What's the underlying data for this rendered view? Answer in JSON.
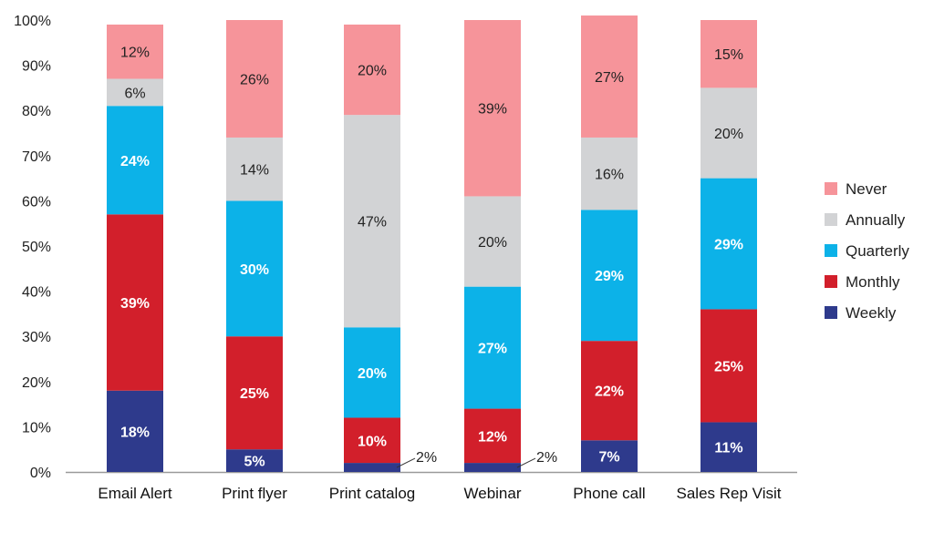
{
  "chart_data": {
    "type": "bar",
    "stacked": true,
    "title": "",
    "xlabel": "",
    "ylabel": "",
    "ylim": [
      0,
      100
    ],
    "y_ticks": [
      "0%",
      "10%",
      "20%",
      "30%",
      "40%",
      "50%",
      "60%",
      "70%",
      "80%",
      "90%",
      "100%"
    ],
    "grid": false,
    "legend_position": "right",
    "categories": [
      "Email Alert",
      "Print flyer",
      "Print catalog",
      "Webinar",
      "Phone call",
      "Sales Rep Visit"
    ],
    "series": [
      {
        "name": "Weekly",
        "color": "#2e3a8c",
        "label_color": "#ffffff",
        "values": [
          18,
          5,
          2,
          2,
          7,
          11
        ]
      },
      {
        "name": "Monthly",
        "color": "#d21f2b",
        "label_color": "#ffffff",
        "values": [
          39,
          25,
          10,
          12,
          22,
          25
        ]
      },
      {
        "name": "Quarterly",
        "color": "#0cb2e8",
        "label_color": "#ffffff",
        "values": [
          24,
          30,
          20,
          27,
          29,
          29
        ]
      },
      {
        "name": "Annually",
        "color": "#d2d3d5",
        "label_color": "#222222",
        "values": [
          6,
          14,
          47,
          20,
          16,
          20
        ]
      },
      {
        "name": "Never",
        "color": "#f6949a",
        "label_color": "#222222",
        "values": [
          12,
          26,
          20,
          39,
          27,
          15
        ]
      }
    ],
    "data_labels": [
      [
        "18%",
        "39%",
        "24%",
        "6%",
        "12%"
      ],
      [
        "5%",
        "25%",
        "30%",
        "14%",
        "26%"
      ],
      [
        "2%",
        "10%",
        "20%",
        "47%",
        "20%"
      ],
      [
        "2%",
        "12%",
        "27%",
        "20%",
        "39%"
      ],
      [
        "7%",
        "22%",
        "29%",
        "16%",
        "27%"
      ],
      [
        "11%",
        "25%",
        "29%",
        "20%",
        "15%"
      ]
    ],
    "legend_order": [
      "Never",
      "Annually",
      "Quarterly",
      "Monthly",
      "Weekly"
    ]
  }
}
